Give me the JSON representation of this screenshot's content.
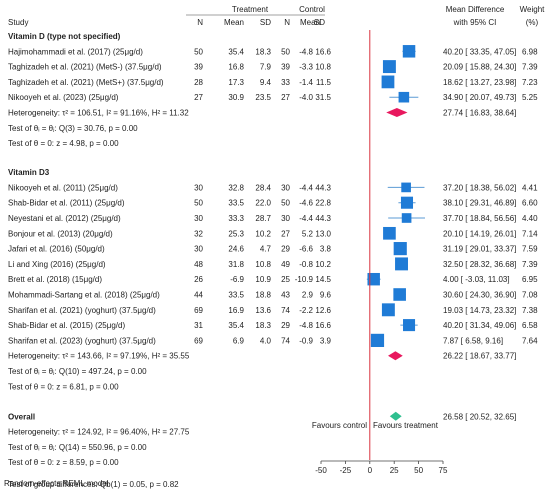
{
  "header": {
    "study": "Study",
    "treatment": "Treatment",
    "control": "Control",
    "n": "N",
    "mean": "Mean",
    "sd": "SD",
    "md_line1": "Mean Difference",
    "md_line2": "with 95% CI",
    "weight_line1": "Weight",
    "weight_line2": "(%)"
  },
  "footer": "Random-effects REML model",
  "favours_control": "Favours control",
  "favours_treatment": "Favours treatment",
  "colors": {
    "study_marker": "#1f7bd6",
    "subgroup_diamond": "#e8185e",
    "overall_diamond": "#2fbf8f",
    "null_line": "#d9333f",
    "ci_line": "#5b9bd5"
  },
  "chart_data": {
    "type": "forest",
    "xlim": [
      -50,
      75
    ],
    "xticks": [
      -50,
      -25,
      0,
      25,
      50,
      75
    ],
    "null_value": 0,
    "groups": [
      {
        "title": "Vitamin D (type not specified)",
        "studies": [
          {
            "label": "Hajimohammadi et al. (2017) (25μg/d)",
            "tn": "50",
            "tmean": "35.4",
            "tsd": "18.3",
            "cn": "50",
            "cmean": "-4.8",
            "csd": "16.6",
            "md": 40.2,
            "lo": 33.35,
            "hi": 47.05,
            "ci": "40.20 [ 33.35,  47.05]",
            "weight": "6.98"
          },
          {
            "label": "Taghizadeh et al. (2021) (MetS-) (37.5μg/d)",
            "tn": "39",
            "tmean": "16.8",
            "tsd": "7.9",
            "cn": "39",
            "cmean": "-3.3",
            "csd": "10.8",
            "md": 20.09,
            "lo": 15.88,
            "hi": 24.3,
            "ci": "20.09 [ 15.88,  24.30]",
            "weight": "7.39"
          },
          {
            "label": "Taghizadeh et al. (2021) (MetS+) (37.5μg/d)",
            "tn": "28",
            "tmean": "17.3",
            "tsd": "9.4",
            "cn": "33",
            "cmean": "-1.4",
            "csd": "11.5",
            "md": 18.62,
            "lo": 13.27,
            "hi": 23.98,
            "ci": "18.62 [ 13.27,  23.98]",
            "weight": "7.23"
          },
          {
            "label": "Nikooyeh et al. (2023) (25μg/d)",
            "tn": "27",
            "tmean": "30.9",
            "tsd": "23.5",
            "cn": "27",
            "cmean": "-4.0",
            "csd": "31.5",
            "md": 34.9,
            "lo": 20.07,
            "hi": 49.73,
            "ci": "34.90 [ 20.07,  49.73]",
            "weight": "5.25"
          }
        ],
        "pooled": {
          "md": 27.74,
          "lo": 16.83,
          "hi": 38.64,
          "ci": "27.74 [ 16.83,  38.64]"
        },
        "heterogeneity": "Heterogeneity: τ² = 106.51, I² = 91.16%, H² = 11.32",
        "test_theta_i": "Test of θᵢ = θⱼ: Q(3) = 30.76, p = 0.00",
        "test_theta": "Test of θ = 0: z = 4.98, p = 0.00"
      },
      {
        "title": "Vitamin D3",
        "studies": [
          {
            "label": "Nikooyeh et al. (2011) (25μg/d)",
            "tn": "30",
            "tmean": "32.8",
            "tsd": "28.4",
            "cn": "30",
            "cmean": "-4.4",
            "csd": "44.3",
            "md": 37.2,
            "lo": 18.38,
            "hi": 56.02,
            "ci": "37.20 [ 18.38,  56.02]",
            "weight": "4.41"
          },
          {
            "label": "Shab-Bidar et al. (2011) (25μg/d)",
            "tn": "50",
            "tmean": "33.5",
            "tsd": "22.0",
            "cn": "50",
            "cmean": "-4.6",
            "csd": "22.8",
            "md": 38.1,
            "lo": 29.31,
            "hi": 46.89,
            "ci": "38.10 [ 29.31,  46.89]",
            "weight": "6.60"
          },
          {
            "label": "Neyestani et al. (2012) (25μg/d)",
            "tn": "30",
            "tmean": "33.3",
            "tsd": "28.7",
            "cn": "30",
            "cmean": "-4.4",
            "csd": "44.3",
            "md": 37.7,
            "lo": 18.84,
            "hi": 56.56,
            "ci": "37.70 [ 18.84,  56.56]",
            "weight": "4.40"
          },
          {
            "label": "Bonjour et al. (2013) (20μg/d)",
            "tn": "32",
            "tmean": "25.3",
            "tsd": "10.2",
            "cn": "27",
            "cmean": "5.2",
            "csd": "13.0",
            "md": 20.1,
            "lo": 14.19,
            "hi": 26.01,
            "ci": "20.10 [ 14.19,  26.01]",
            "weight": "7.14"
          },
          {
            "label": "Jafari et al. (2016) (50μg/d)",
            "tn": "30",
            "tmean": "24.6",
            "tsd": "4.7",
            "cn": "29",
            "cmean": "-6.6",
            "csd": "3.8",
            "md": 31.19,
            "lo": 29.01,
            "hi": 33.37,
            "ci": "31.19 [ 29.01,  33.37]",
            "weight": "7.59"
          },
          {
            "label": "Li and Xing (2016) (25μg/d)",
            "tn": "48",
            "tmean": "31.8",
            "tsd": "10.8",
            "cn": "49",
            "cmean": "-0.8",
            "csd": "10.2",
            "md": 32.5,
            "lo": 28.32,
            "hi": 36.68,
            "ci": "32.50 [ 28.32,  36.68]",
            "weight": "7.39"
          },
          {
            "label": "Brett et al. (2018) (15μg/d)",
            "tn": "26",
            "tmean": "-6.9",
            "tsd": "10.9",
            "cn": "25",
            "cmean": "-10.9",
            "csd": "14.5",
            "md": 4.0,
            "lo": -3.03,
            "hi": 11.03,
            "ci": "4.00 [ -3.03,  11.03]",
            "weight": "6.95"
          },
          {
            "label": "Mohammadi-Sartang et al. (2018) (25μg/d)",
            "tn": "44",
            "tmean": "33.5",
            "tsd": "18.8",
            "cn": "43",
            "cmean": "2.9",
            "csd": "9.6",
            "md": 30.6,
            "lo": 24.3,
            "hi": 36.9,
            "ci": "30.60 [ 24.30,  36.90]",
            "weight": "7.08"
          },
          {
            "label": "Sharifan et al. (2021) (yoghurt) (37.5μg/d)",
            "tn": "69",
            "tmean": "16.9",
            "tsd": "13.6",
            "cn": "74",
            "cmean": "-2.2",
            "csd": "12.6",
            "md": 19.03,
            "lo": 14.73,
            "hi": 23.32,
            "ci": "19.03 [ 14.73,  23.32]",
            "weight": "7.38"
          },
          {
            "label": "Shab-Bidar et al. (2015) (25μg/d)",
            "tn": "31",
            "tmean": "35.4",
            "tsd": "18.3",
            "cn": "29",
            "cmean": "-4.8",
            "csd": "16.6",
            "md": 40.2,
            "lo": 31.34,
            "hi": 49.06,
            "ci": "40.20 [ 31.34,  49.06]",
            "weight": "6.58"
          },
          {
            "label": "Sharifan et al. (2023) (yoghurt) (37.5μg/d)",
            "tn": "69",
            "tmean": "6.9",
            "tsd": "4.0",
            "cn": "74",
            "cmean": "-0.9",
            "csd": "3.9",
            "md": 7.87,
            "lo": 6.58,
            "hi": 9.16,
            "ci": "7.87 [  6.58,   9.16]",
            "weight": "7.64"
          }
        ],
        "pooled": {
          "md": 26.22,
          "lo": 18.67,
          "hi": 33.77,
          "ci": "26.22 [ 18.67,  33.77]"
        },
        "heterogeneity": "Heterogeneity: τ² = 143.66, I² = 97.19%, H² = 35.55",
        "test_theta_i": "Test of θᵢ = θⱼ: Q(10) = 497.24, p = 0.00",
        "test_theta": "Test of θ = 0: z = 6.81, p = 0.00"
      }
    ],
    "overall": {
      "title": "Overall",
      "md": 26.58,
      "lo": 20.52,
      "hi": 32.65,
      "ci": "26.58 [ 20.52,  32.65]",
      "heterogeneity": "Heterogeneity: τ² = 124.92, I² = 96.40%, H² = 27.75",
      "test_theta_i": "Test of θᵢ = θⱼ: Q(14) = 550.96, p = 0.00",
      "test_theta": "Test of θ = 0: z = 8.59, p = 0.00"
    },
    "subgroup_test": "Test of group differences: Qb(1) = 0.05, p = 0.82"
  }
}
